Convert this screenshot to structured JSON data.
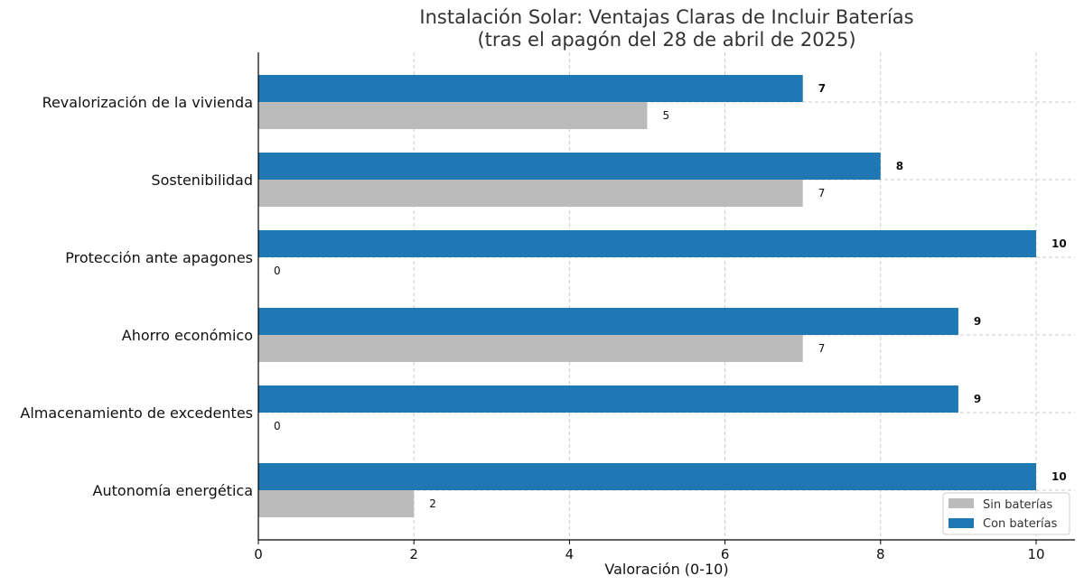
{
  "chart_data": {
    "type": "bar",
    "orientation": "horizontal",
    "title": "Instalación Solar: Ventajas Claras de Incluir Baterías",
    "subtitle": "(tras el apagón del 28 de abril de 2025)",
    "xlabel": "Valoración (0-10)",
    "ylabel": "",
    "xlim": [
      0,
      10.5
    ],
    "xticks": [
      0,
      2,
      4,
      6,
      8,
      10
    ],
    "grid": true,
    "legend_position": "bottom-right",
    "categories": [
      "Revalorización de la vivienda",
      "Sostenibilidad",
      "Protección ante apagones",
      "Ahorro económico",
      "Almacenamiento de excedentes",
      "Autonomía energética"
    ],
    "series": [
      {
        "name": "Sin baterías",
        "color": "#bbbbbb",
        "values": [
          5,
          7,
          0,
          7,
          0,
          2
        ]
      },
      {
        "name": "Con baterías",
        "color": "#1f77b4",
        "values": [
          7,
          8,
          10,
          9,
          9,
          10
        ]
      }
    ]
  }
}
